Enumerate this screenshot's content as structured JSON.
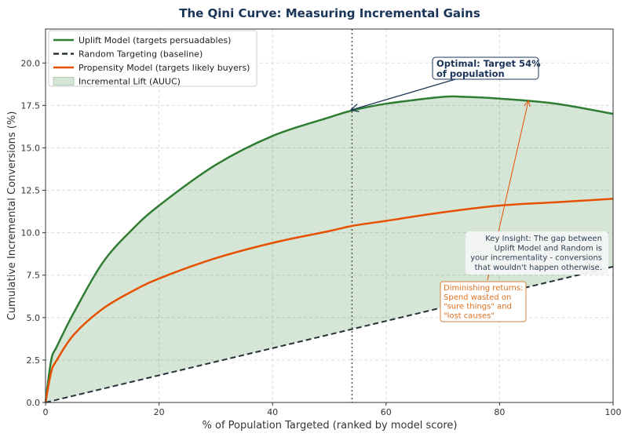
{
  "chart_data": {
    "type": "line",
    "title": "The Qini Curve: Measuring Incremental Gains",
    "xlabel": "% of Population Targeted (ranked by model score)",
    "ylabel": "Cumulative Incremental Conversions (%)",
    "xlim": [
      0,
      100
    ],
    "ylim": [
      0,
      22
    ],
    "xticks": [
      "0",
      "20",
      "40",
      "60",
      "80",
      "100"
    ],
    "yticks": [
      "0.0",
      "2.5",
      "5.0",
      "7.5",
      "10.0",
      "12.5",
      "15.0",
      "17.5",
      "20.0"
    ],
    "grid": true,
    "legend_position": "top-left",
    "series": [
      {
        "name": "Uplift Model (targets persuadables)",
        "color": "#2e7d32",
        "style": "solid",
        "x": [
          0,
          1,
          2,
          5,
          10,
          15,
          20,
          30,
          40,
          50,
          54,
          60,
          70,
          74,
          80,
          90,
          100
        ],
        "y": [
          0,
          2.5,
          3.3,
          5.3,
          8.2,
          10.1,
          11.6,
          14.0,
          15.7,
          16.8,
          17.2,
          17.6,
          18.0,
          18.0,
          17.9,
          17.6,
          17.0
        ]
      },
      {
        "name": "Random Targeting (baseline)",
        "color": "#263238",
        "style": "dashed",
        "x": [
          0,
          100
        ],
        "y": [
          0,
          8
        ]
      },
      {
        "name": "Propensity Model (targets likely buyers)",
        "color": "#e65100",
        "style": "solid",
        "x": [
          0,
          1,
          2,
          5,
          10,
          15,
          20,
          30,
          40,
          50,
          54,
          60,
          70,
          80,
          90,
          100
        ],
        "y": [
          0,
          1.8,
          2.5,
          4.0,
          5.5,
          6.5,
          7.3,
          8.5,
          9.4,
          10.1,
          10.4,
          10.7,
          11.2,
          11.6,
          11.8,
          12.0
        ]
      }
    ],
    "fill": {
      "name": "Incremental Lift (AUUC)",
      "color": "#2e7d32",
      "between": [
        "Uplift Model (targets persuadables)",
        "Random Targeting (baseline)"
      ]
    },
    "vline": {
      "x": 54
    },
    "annotations": {
      "optimal": [
        "Optimal: Target 54%",
        "of population"
      ],
      "insight": [
        "Key Insight: The gap between",
        "Uplift Model and Random is",
        "your incrementality - conversions",
        "that wouldn't happen otherwise."
      ],
      "diminishing": [
        "Diminishing returns:",
        "Spend wasted on",
        "\"sure things\" and",
        "\"lost causes\""
      ]
    }
  }
}
